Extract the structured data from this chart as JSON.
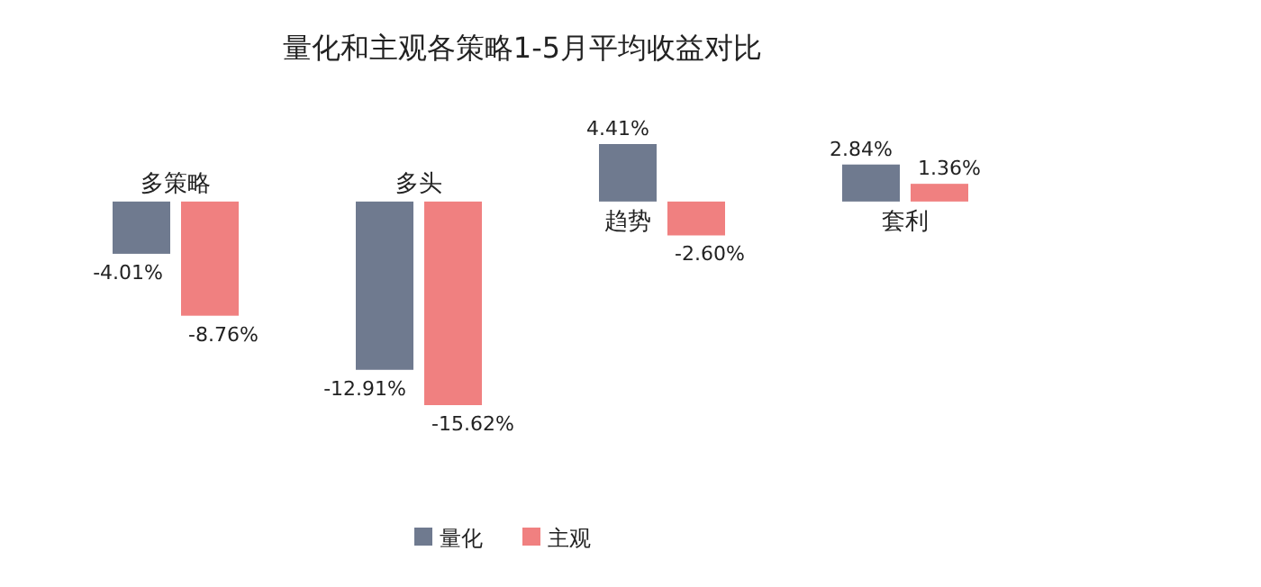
{
  "chart_data": {
    "type": "bar",
    "title": "量化和主观各策略1-5月平均收益对比",
    "categories": [
      "多策略",
      "多头",
      "趋势",
      "套利"
    ],
    "series": [
      {
        "name": "量化",
        "color": "#6f7a8f",
        "values": [
          -4.01,
          -12.91,
          4.41,
          2.84
        ],
        "value_labels": [
          "-4.01%",
          "-12.91%",
          "4.41%",
          "2.84%"
        ]
      },
      {
        "name": "主观",
        "color": "#f08080",
        "values": [
          -8.76,
          -15.62,
          -2.6,
          1.36
        ],
        "value_labels": [
          "-8.76%",
          "-15.62%",
          "-2.60%",
          "1.36%"
        ]
      }
    ],
    "legend": "bottom"
  }
}
